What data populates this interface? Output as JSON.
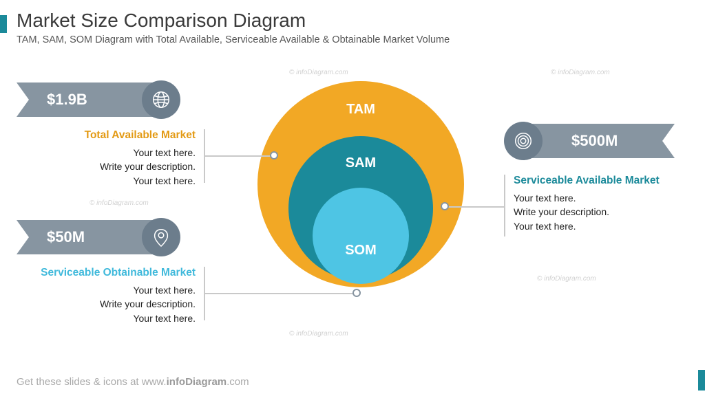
{
  "header": {
    "title": "Market Size Comparison Diagram",
    "subtitle": "TAM, SAM, SOM Diagram with Total Available, Serviceable Available & Obtainable Market Volume"
  },
  "footer": {
    "prefix": "Get these slides & icons at www.",
    "bold": "infoDiagram",
    "suffix": ".com"
  },
  "colors": {
    "ribbon": "#8795a1",
    "icon_badge": "#6c7d8c",
    "accent": "#1b8a9a",
    "tam": "#f2a825",
    "sam": "#1b8a9a",
    "som": "#4ec5e4",
    "tam_text": "#e39a14",
    "sam_text": "#1b8a9a",
    "som_text": "#3fb9db",
    "rule": "#c9c9c9"
  },
  "circles": {
    "tam": {
      "label": "TAM",
      "diameter": 300,
      "color": "#f2a825"
    },
    "sam": {
      "label": "SAM",
      "diameter": 210,
      "color": "#1b8a9a"
    },
    "som": {
      "label": "SOM",
      "diameter": 140,
      "color": "#4ec5e4"
    }
  },
  "callouts": {
    "tam": {
      "value": "$1.9B",
      "heading": "Total Available Market",
      "body": "Your text here.\nWrite your description.\nYour text here.",
      "heading_color": "#e39a14",
      "icon": "globe-icon"
    },
    "sam": {
      "value": "$500M",
      "heading": "Serviceable Available Market",
      "body": "Your text here.\nWrite your description.\nYour text here.",
      "heading_color": "#1b8a9a",
      "icon": "target-icon"
    },
    "som": {
      "value": "$50M",
      "heading": "Serviceable Obtainable Market",
      "body": "Your text here.\nWrite your description.\nYour text here.",
      "heading_color": "#3fb9db",
      "icon": "pin-icon"
    }
  },
  "typography": {
    "title_size": 28,
    "subtitle_size": 14.5,
    "ribbon_value_size": 22,
    "heading_size": 15.5,
    "body_size": 14,
    "circle_label_size": 20
  },
  "watermark": "© infoDiagram.com"
}
